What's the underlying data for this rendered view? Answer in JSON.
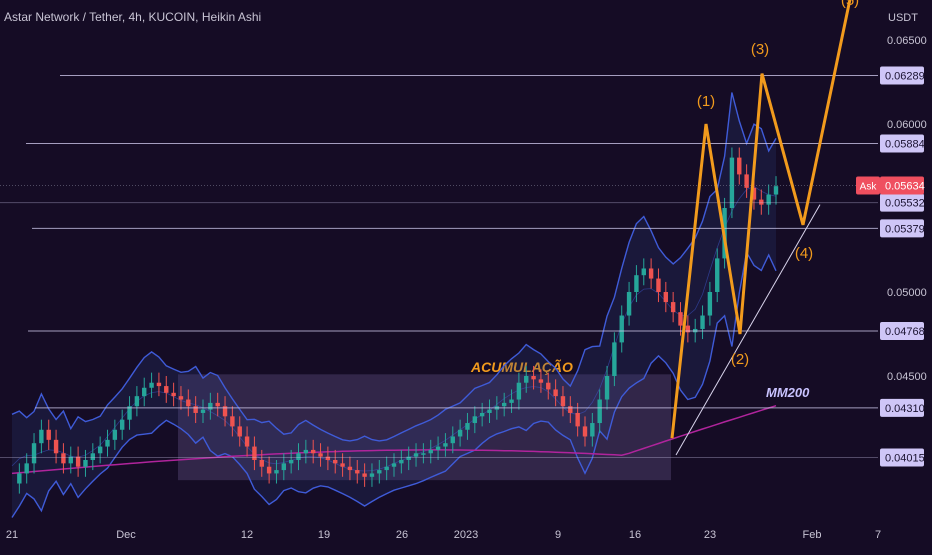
{
  "header": {
    "title": "Astar Network / Tether, 4h, KUCOIN, Heikin Ashi"
  },
  "colors": {
    "background": "#150c25",
    "bullish_candle": "#26a69a",
    "bearish_candle": "#ef5350",
    "bollinger_bands": "#3f5bd8",
    "moving_average": "#b0249c",
    "elliott_wave": "#f29b1d",
    "horizontal_levels": "#c9c3e6",
    "price_tag_bg": "#cfc6f7",
    "ask_tag_bg": "#ef4f5f"
  },
  "chart_data": {
    "type": "candlestick",
    "symbol": "Astar Network / Tether",
    "interval": "4h",
    "exchange": "KUCOIN",
    "style": "Heikin Ashi",
    "currency": "USDT",
    "x_ticks": [
      "21",
      "Dec",
      "12",
      "19",
      "26",
      "2023",
      "9",
      "16",
      "23",
      "Feb",
      "7"
    ],
    "y_ticks": [
      0.04,
      0.045,
      0.05,
      0.055,
      0.06,
      0.065
    ],
    "y_tick_labels": [
      "",
      "0.04500",
      "0.05000",
      "",
      "0.06000",
      "0.06500"
    ],
    "ylim": [
      0.0372,
      0.0685
    ],
    "ask": {
      "label": "Ask",
      "value": "0.05634"
    },
    "horizontal_levels": [
      "0.06289",
      "0.05884",
      "0.05532",
      "0.05379",
      "0.04768",
      "0.04310",
      "0.04015"
    ],
    "indicators": [
      "Bollinger Bands",
      "MM200"
    ],
    "accumulation_zone": {
      "label": "ACUMULAÇÃO",
      "from": "Dec 5",
      "to": "Jan 19",
      "low": 0.0388,
      "high": 0.0451
    },
    "ma200_label": "MM200",
    "elliott_wave": {
      "labels": [
        "(1)",
        "(2)",
        "(3)",
        "(4)",
        "(5)"
      ],
      "points": [
        {
          "label": "start",
          "value": 0.0413
        },
        {
          "label": "(1)",
          "value": 0.06
        },
        {
          "label": "(2)",
          "value": 0.0475
        },
        {
          "label": "(3)",
          "value": 0.063
        },
        {
          "label": "(4)",
          "value": 0.054
        },
        {
          "label": "(5)",
          "value": 0.068
        }
      ]
    },
    "price_path": [
      0.0386,
      0.0392,
      0.0398,
      0.041,
      0.0418,
      0.0412,
      0.0404,
      0.0398,
      0.0402,
      0.0396,
      0.04,
      0.0404,
      0.0408,
      0.0412,
      0.0418,
      0.0424,
      0.0432,
      0.0438,
      0.0443,
      0.0446,
      0.0444,
      0.044,
      0.0438,
      0.0436,
      0.0432,
      0.0428,
      0.043,
      0.0434,
      0.0432,
      0.0426,
      0.042,
      0.0414,
      0.0408,
      0.04,
      0.0396,
      0.0392,
      0.0394,
      0.0398,
      0.04,
      0.0404,
      0.0406,
      0.0404,
      0.0402,
      0.04,
      0.0398,
      0.0396,
      0.0394,
      0.0392,
      0.039,
      0.0392,
      0.0394,
      0.0396,
      0.0398,
      0.04,
      0.0402,
      0.0404,
      0.0404,
      0.0406,
      0.0408,
      0.041,
      0.0414,
      0.0418,
      0.0422,
      0.0426,
      0.0428,
      0.043,
      0.0432,
      0.0434,
      0.0436,
      0.0446,
      0.045,
      0.0448,
      0.0446,
      0.0442,
      0.0438,
      0.0432,
      0.0428,
      0.042,
      0.0414,
      0.0422,
      0.0436,
      0.045,
      0.047,
      0.0486,
      0.05,
      0.051,
      0.0514,
      0.0508,
      0.05,
      0.0494,
      0.0488,
      0.048,
      0.0476,
      0.0478,
      0.0486,
      0.05,
      0.052,
      0.055,
      0.058,
      0.057,
      0.0562,
      0.0555,
      0.0552,
      0.0558,
      0.0563
    ]
  }
}
